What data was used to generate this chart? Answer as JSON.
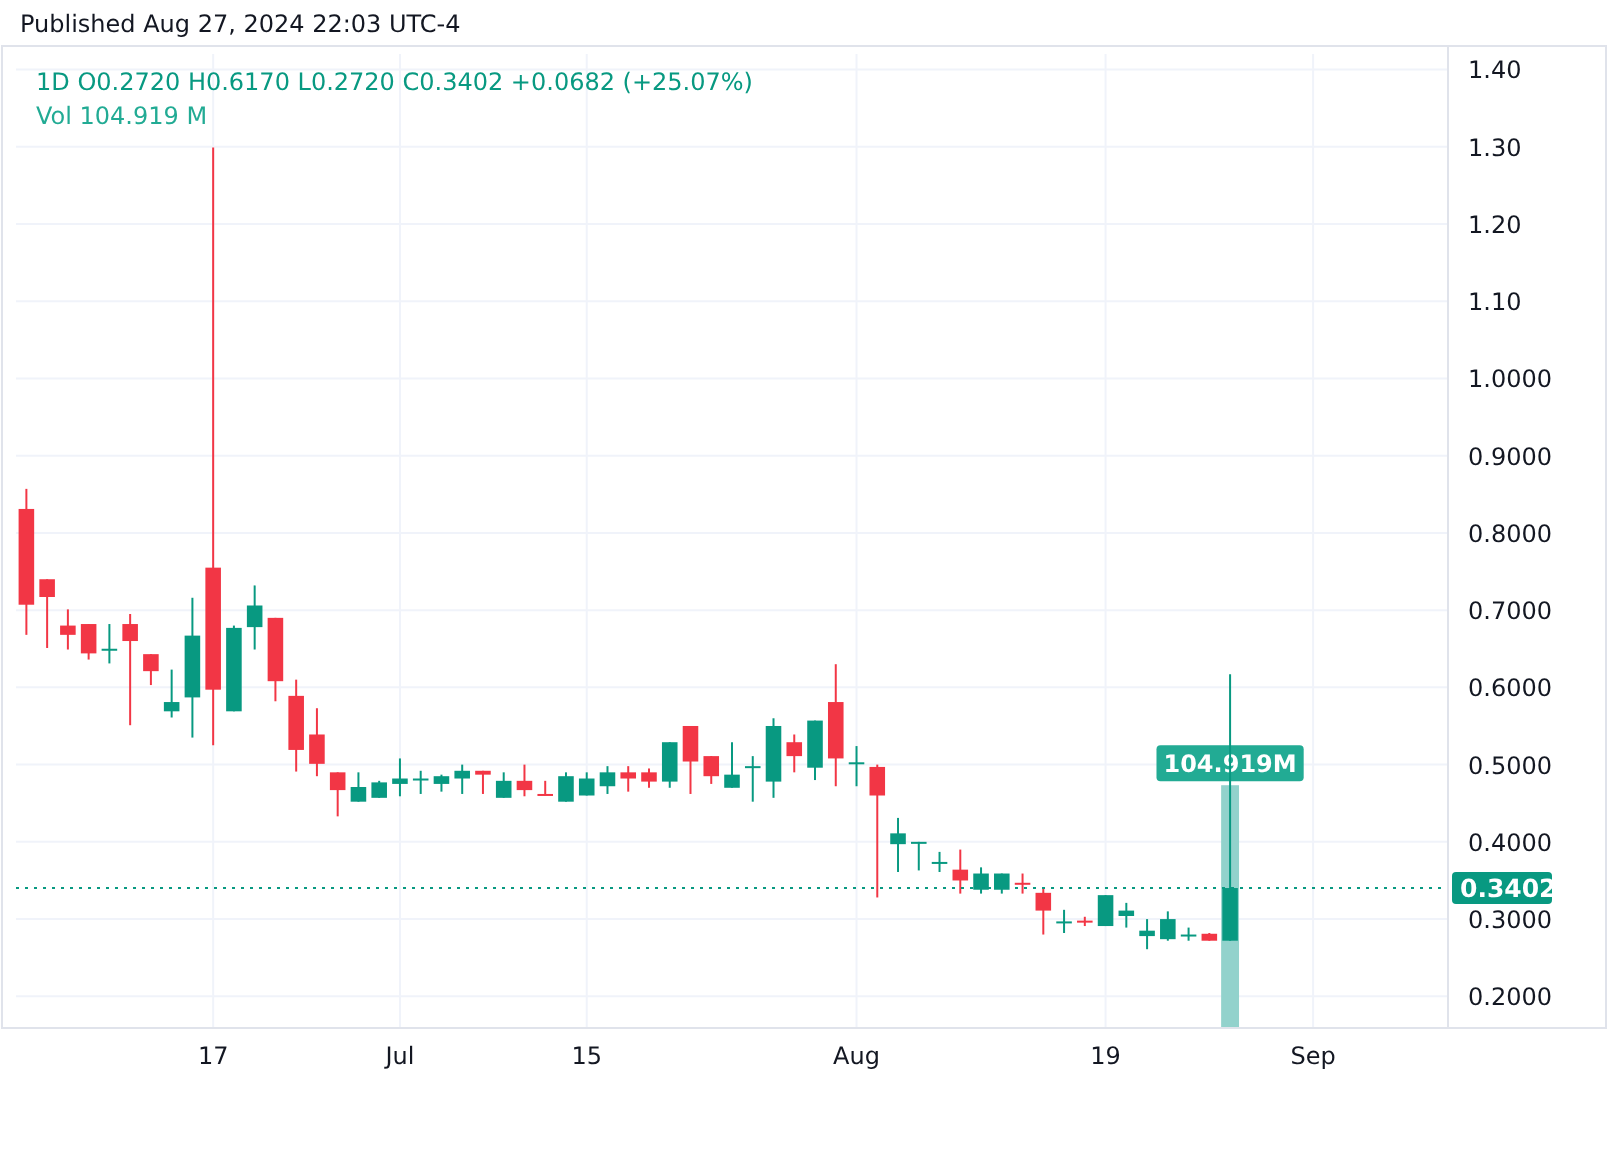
{
  "chart_data": {
    "type": "candlestick",
    "title": "1D  O0.2720  H0.6170  L0.2720  C0.3402  +0.0682 (+25.07%)",
    "subtitle": "Vol 104.919 M",
    "annotations": [
      "Published Aug 27, 2024 22:03 UTC-4"
    ],
    "categories": [
      null,
      null,
      null,
      null,
      null,
      null,
      null,
      null,
      null,
      "17",
      null,
      null,
      null,
      null,
      null,
      null,
      null,
      null,
      "Jul",
      null,
      null,
      null,
      null,
      null,
      null,
      null,
      null,
      "15",
      null,
      null,
      null,
      null,
      null,
      null,
      null,
      null,
      null,
      null,
      null,
      null,
      "Aug",
      null,
      null,
      null,
      null,
      null,
      null,
      null,
      null,
      null,
      null,
      null,
      "19",
      null,
      null,
      null,
      null,
      null,
      null,
      null,
      null,
      null,
      "Sep",
      null,
      null,
      null,
      null,
      null,
      null
    ],
    "ohlc": [
      [
        0.831,
        0.857,
        0.668,
        0.707
      ],
      [
        0.74,
        0.74,
        0.651,
        0.717
      ],
      [
        0.68,
        0.701,
        0.649,
        0.668
      ],
      [
        0.682,
        0.682,
        0.636,
        0.644
      ],
      [
        0.649,
        0.682,
        0.631,
        0.65
      ],
      [
        0.682,
        0.695,
        0.551,
        0.66
      ],
      [
        0.643,
        0.643,
        0.603,
        0.621
      ],
      [
        0.569,
        0.623,
        0.561,
        0.581
      ],
      [
        0.587,
        0.716,
        0.535,
        0.667
      ],
      [
        0.755,
        1.299,
        0.525,
        0.597
      ],
      [
        0.569,
        0.68,
        0.569,
        0.677
      ],
      [
        0.678,
        0.732,
        0.649,
        0.706
      ],
      [
        0.69,
        0.69,
        0.582,
        0.608
      ],
      [
        0.589,
        0.61,
        0.491,
        0.519
      ],
      [
        0.539,
        0.573,
        0.485,
        0.501
      ],
      [
        0.49,
        0.49,
        0.433,
        0.467
      ],
      [
        0.452,
        0.49,
        0.452,
        0.471
      ],
      [
        0.457,
        0.479,
        0.457,
        0.477
      ],
      [
        0.475,
        0.508,
        0.459,
        0.482
      ],
      [
        0.481,
        0.492,
        0.462,
        0.482
      ],
      [
        0.475,
        0.487,
        0.465,
        0.485
      ],
      [
        0.482,
        0.5,
        0.462,
        0.492
      ],
      [
        0.492,
        0.492,
        0.462,
        0.487
      ],
      [
        0.457,
        0.49,
        0.457,
        0.479
      ],
      [
        0.479,
        0.5,
        0.459,
        0.467
      ],
      [
        0.462,
        0.479,
        0.46,
        0.46
      ],
      [
        0.452,
        0.49,
        0.452,
        0.485
      ],
      [
        0.46,
        0.49,
        0.46,
        0.482
      ],
      [
        0.472,
        0.498,
        0.462,
        0.49
      ],
      [
        0.49,
        0.498,
        0.465,
        0.482
      ],
      [
        0.49,
        0.495,
        0.47,
        0.478
      ],
      [
        0.478,
        0.529,
        0.47,
        0.529
      ],
      [
        0.55,
        0.55,
        0.462,
        0.504
      ],
      [
        0.511,
        0.511,
        0.475,
        0.485
      ],
      [
        0.47,
        0.529,
        0.47,
        0.487
      ],
      [
        0.497,
        0.511,
        0.452,
        0.498
      ],
      [
        0.478,
        0.56,
        0.457,
        0.55
      ],
      [
        0.529,
        0.539,
        0.49,
        0.511
      ],
      [
        0.496,
        0.557,
        0.48,
        0.557
      ],
      [
        0.581,
        0.63,
        0.472,
        0.508
      ],
      [
        0.502,
        0.524,
        0.472,
        0.503
      ],
      [
        0.497,
        0.5,
        0.328,
        0.46
      ],
      [
        0.397,
        0.431,
        0.361,
        0.411
      ],
      [
        0.399,
        0.4,
        0.363,
        0.4
      ],
      [
        0.373,
        0.387,
        0.361,
        0.374
      ],
      [
        0.364,
        0.39,
        0.333,
        0.35
      ],
      [
        0.338,
        0.367,
        0.333,
        0.359
      ],
      [
        0.338,
        0.359,
        0.333,
        0.359
      ],
      [
        0.347,
        0.359,
        0.333,
        0.346
      ],
      [
        0.334,
        0.339,
        0.28,
        0.311
      ],
      [
        0.296,
        0.312,
        0.282,
        0.297
      ],
      [
        0.298,
        0.303,
        0.291,
        0.297
      ],
      [
        0.291,
        0.331,
        0.291,
        0.331
      ],
      [
        0.304,
        0.321,
        0.289,
        0.311
      ],
      [
        0.278,
        0.3,
        0.261,
        0.285
      ],
      [
        0.274,
        0.31,
        0.272,
        0.3
      ],
      [
        0.279,
        0.289,
        0.272,
        0.28
      ],
      [
        0.281,
        0.282,
        0.272,
        0.272
      ],
      [
        0.272,
        0.617,
        0.272,
        0.3402
      ],
      null,
      null,
      null,
      null,
      null,
      null,
      null,
      null,
      null,
      null
    ],
    "colors": [
      "#f23645",
      "#f23645",
      "#f23645",
      "#f23645",
      "#089981",
      "#f23645",
      "#f23645",
      "#089981",
      "#089981",
      "#f23645",
      "#089981",
      "#089981",
      "#f23645",
      "#f23645",
      "#f23645",
      "#f23645",
      "#089981",
      "#089981",
      "#089981",
      "#089981",
      "#089981",
      "#089981",
      "#f23645",
      "#089981",
      "#f23645",
      "#f23645",
      "#089981",
      "#089981",
      "#089981",
      "#f23645",
      "#f23645",
      "#089981",
      "#f23645",
      "#f23645",
      "#089981",
      "#089981",
      "#089981",
      "#f23645",
      "#089981",
      "#f23645",
      "#089981",
      "#f23645",
      "#089981",
      "#089981",
      "#089981",
      "#f23645",
      "#089981",
      "#089981",
      "#f23645",
      "#f23645",
      "#089981",
      "#f23645",
      "#089981",
      "#089981",
      "#089981",
      "#089981",
      "#089981",
      "#f23645",
      "#089981",
      null,
      null,
      null,
      null,
      null,
      null,
      null,
      null,
      null,
      null
    ],
    "series": [
      {
        "type": "bar",
        "axis": "y2",
        "values": [
          null,
          null,
          null,
          null,
          null,
          null,
          null,
          null,
          null,
          null,
          null,
          null,
          null,
          null,
          null,
          null,
          null,
          null,
          null,
          null,
          null,
          null,
          null,
          null,
          null,
          null,
          null,
          null,
          null,
          null,
          null,
          null,
          null,
          null,
          null,
          null,
          null,
          null,
          null,
          null,
          null,
          null,
          null,
          null,
          null,
          null,
          null,
          null,
          null,
          null,
          null,
          null,
          null,
          null,
          null,
          null,
          null,
          null,
          104.919,
          null,
          null,
          null,
          null,
          null,
          null,
          null,
          null,
          null,
          null
        ],
        "color": "#92d2cc",
        "value_labels": [
          null,
          null,
          null,
          null,
          null,
          null,
          null,
          null,
          null,
          null,
          null,
          null,
          null,
          null,
          null,
          null,
          null,
          null,
          null,
          null,
          null,
          null,
          null,
          null,
          null,
          null,
          null,
          null,
          null,
          null,
          null,
          null,
          null,
          null,
          null,
          null,
          null,
          null,
          null,
          null,
          null,
          null,
          null,
          null,
          null,
          null,
          null,
          null,
          null,
          null,
          null,
          null,
          null,
          null,
          null,
          null,
          null,
          null,
          "104.919M",
          null,
          null,
          null,
          null,
          null,
          null,
          null,
          null,
          null,
          null
        ]
      }
    ],
    "ylim": [
      0.159,
      1.42
    ],
    "yticks": [
      {
        "value": 0.2,
        "label": "0.2000"
      },
      {
        "value": 0.3,
        "label": "0.3000"
      },
      {
        "value": 0.4,
        "label": "0.4000"
      },
      {
        "value": 0.5,
        "label": "0.5000"
      },
      {
        "value": 0.6,
        "label": "0.6000"
      },
      {
        "value": 0.7,
        "label": "0.7000"
      },
      {
        "value": 0.8,
        "label": "0.8000"
      },
      {
        "value": 0.9,
        "label": "0.9000"
      },
      {
        "value": 1.0,
        "label": "1.0000"
      },
      {
        "value": 1.1,
        "label": "1.10"
      },
      {
        "value": 1.2,
        "label": "1.20"
      },
      {
        "value": 1.3,
        "label": "1.30"
      },
      {
        "value": 1.4,
        "label": "1.40"
      }
    ],
    "ref_lines": [
      {
        "axis": "y",
        "value": 0.3402,
        "label": "0.3402",
        "color": "#089981",
        "line_style": "dotted"
      }
    ],
    "grid": true
  }
}
